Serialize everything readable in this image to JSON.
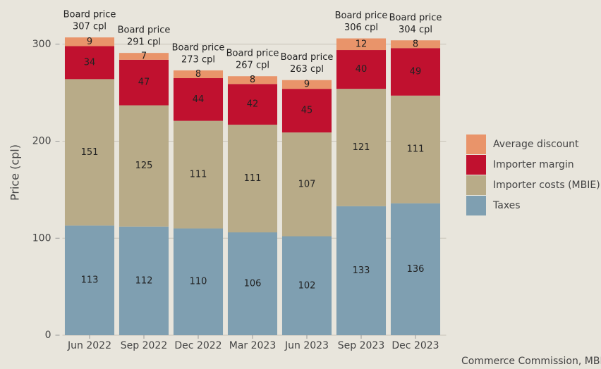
{
  "chart_data": {
    "type": "stacked_bar",
    "y_label": "Price (cpl)",
    "source": "Commerce Commission, MBIE",
    "annotation_title": "Board price",
    "annotations": [
      "307 cpl",
      "291 cpl",
      "273 cpl",
      "267 cpl",
      "263 cpl",
      "306 cpl",
      "304 cpl"
    ],
    "categories": [
      "Jun 2022",
      "Sep 2022",
      "Dec 2022",
      "Mar 2023",
      "Jun 2023",
      "Sep 2023",
      "Dec 2023"
    ],
    "series": [
      {
        "name": "Taxes",
        "color": "#7f9fb1",
        "values": [
          113,
          112,
          110,
          106,
          102,
          133,
          136
        ]
      },
      {
        "name": "Importer costs (MBIE)",
        "color": "#b8ab88",
        "values": [
          151,
          125,
          111,
          111,
          107,
          121,
          111
        ]
      },
      {
        "name": "Importer margin",
        "color": "#c0112f",
        "values": [
          34,
          47,
          44,
          42,
          45,
          40,
          49
        ]
      },
      {
        "name": "Average discount",
        "color": "#e9946a",
        "values": [
          9,
          7,
          8,
          8,
          9,
          12,
          8
        ]
      }
    ],
    "ylim": [
      0,
      310
    ],
    "yticks": [
      0,
      100,
      200,
      300
    ],
    "grid": true
  }
}
